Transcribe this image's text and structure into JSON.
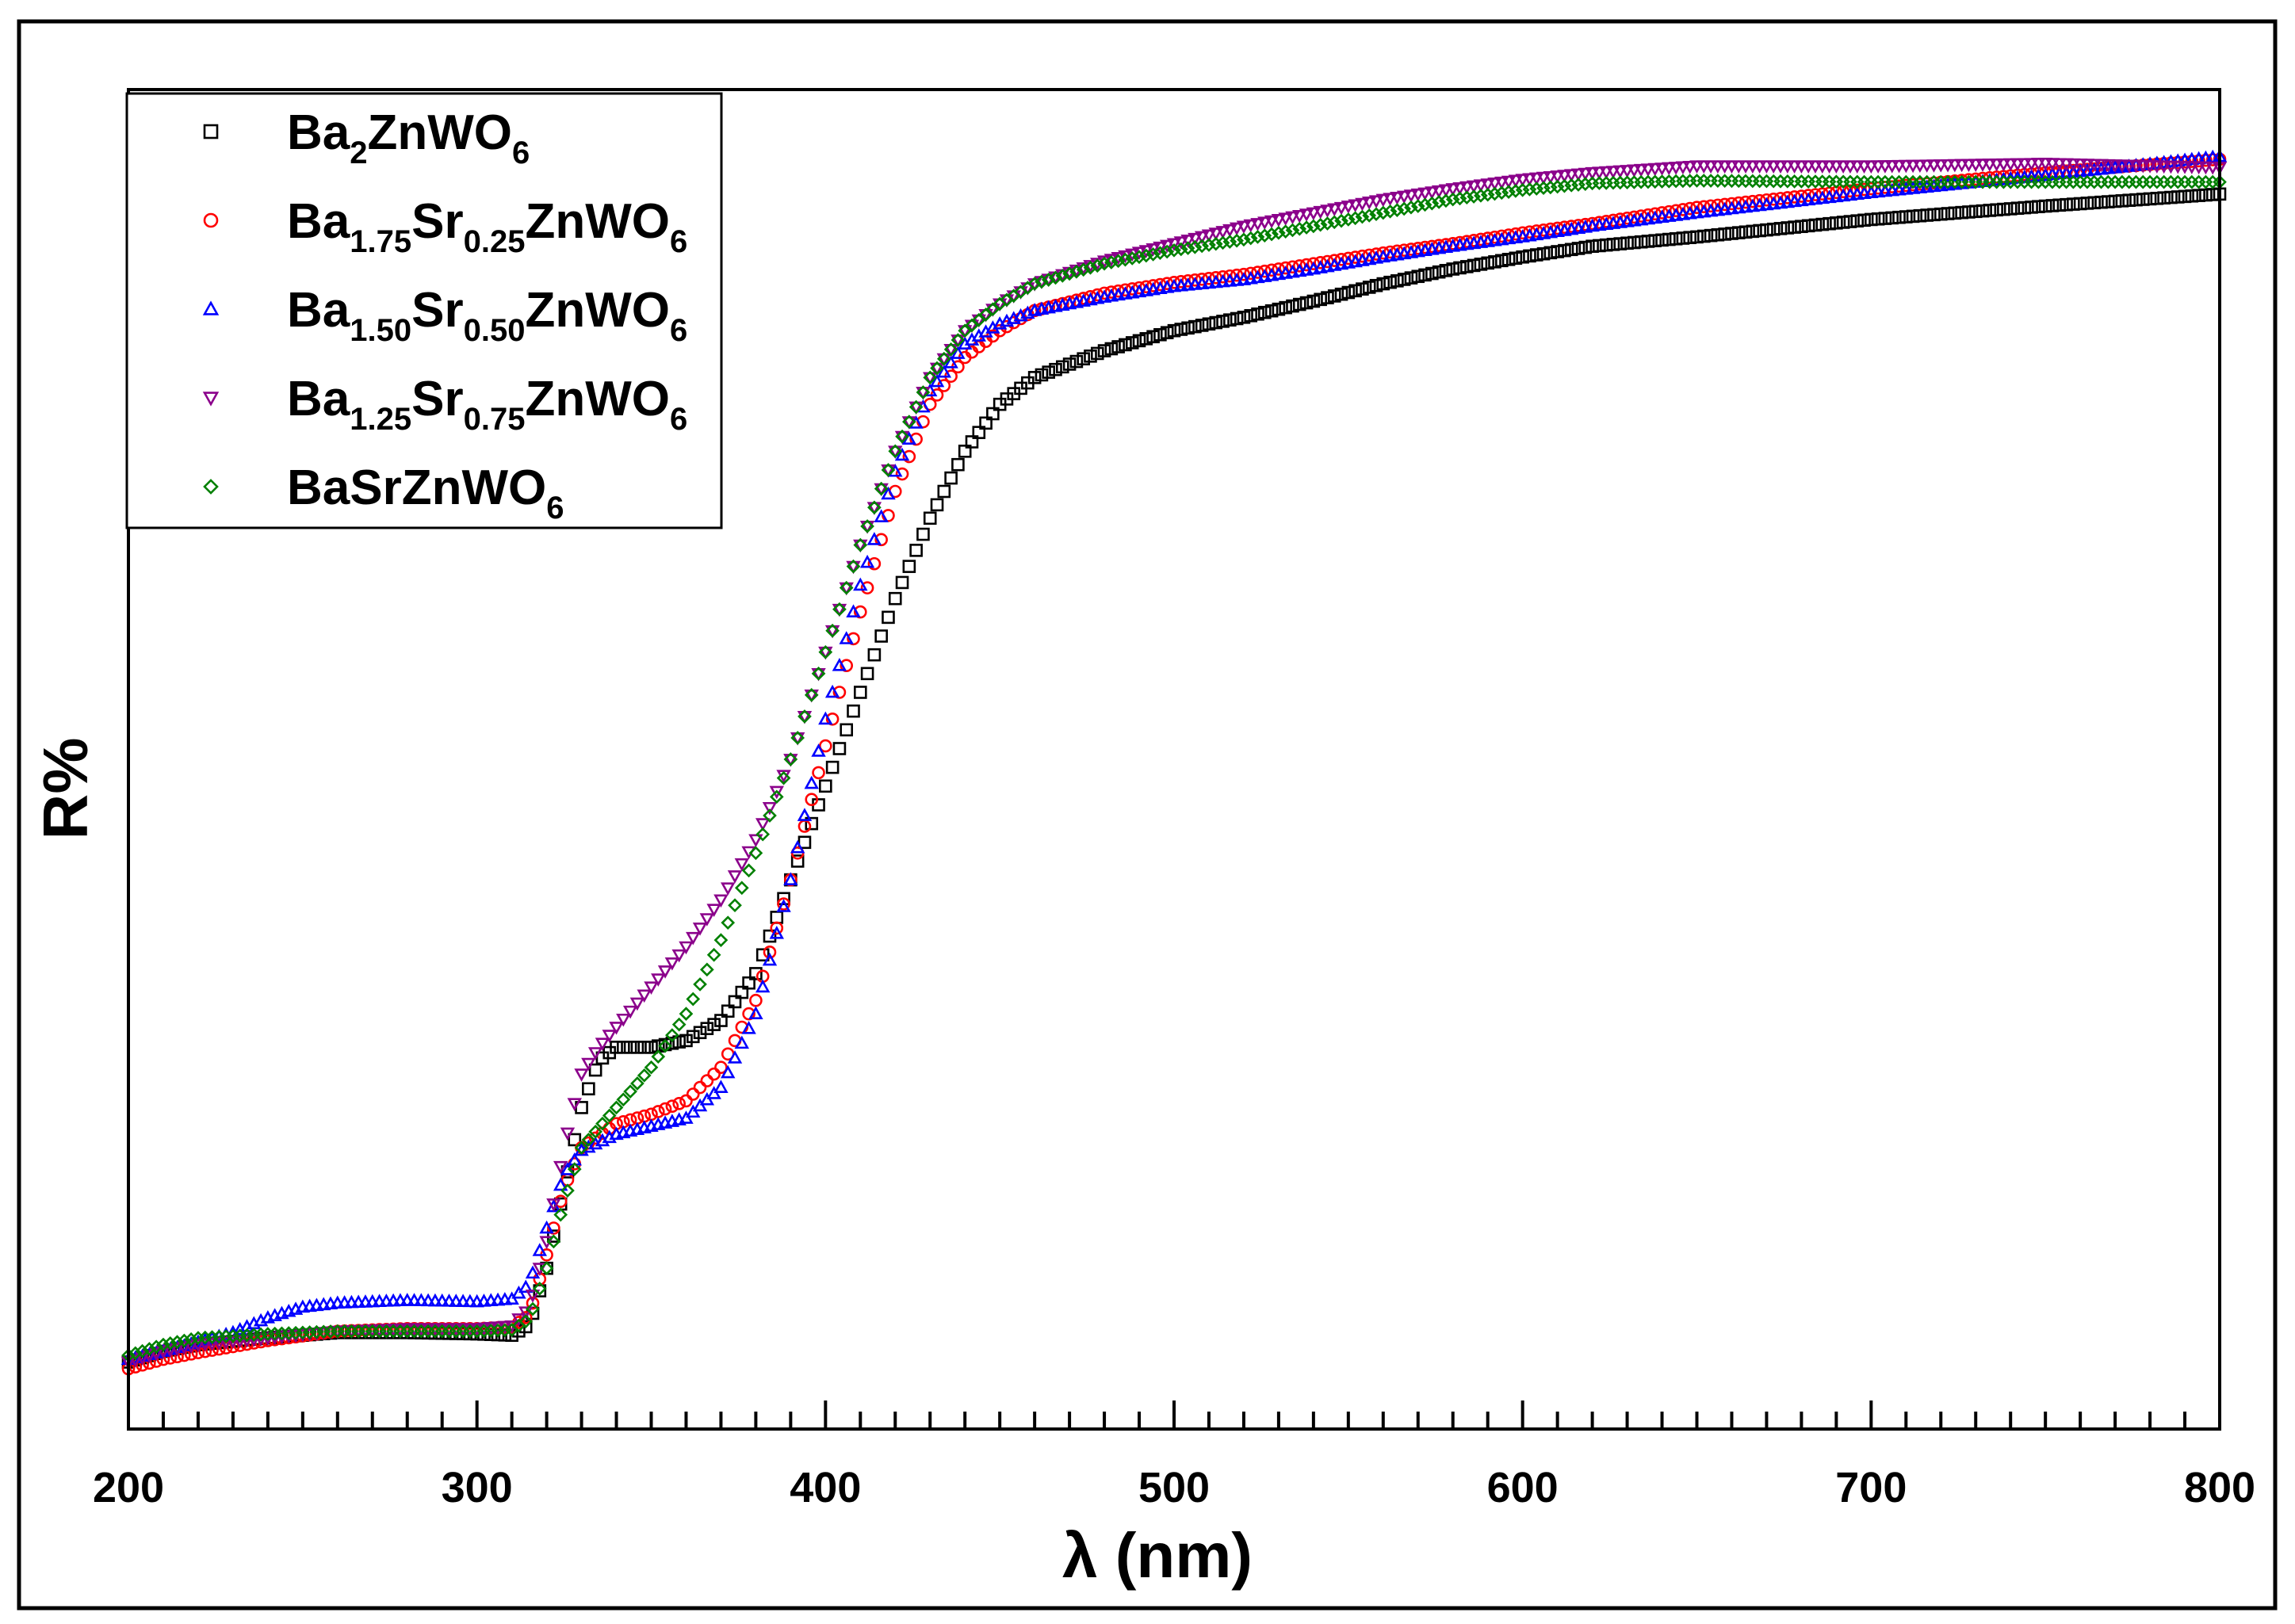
{
  "chart_data": {
    "type": "scatter",
    "title": "",
    "xlabel": "λ (nm)",
    "ylabel": "R%",
    "xlim": [
      200,
      800
    ],
    "ylim": [
      0,
      100
    ],
    "x_ticks": [
      200,
      300,
      400,
      500,
      600,
      700,
      800
    ],
    "y_ticks_labeled": false,
    "legend_position": "top-left",
    "series": [
      {
        "name": "Ba2ZnWO6",
        "legend": {
          "base": "Ba",
          "parts": [
            [
              "2",
              "sub"
            ],
            [
              "ZnWO",
              ""
            ],
            [
              "6",
              "sub"
            ]
          ]
        },
        "marker": "square",
        "color": "#000000",
        "points": [
          [
            200,
            5
          ],
          [
            210,
            5.8
          ],
          [
            220,
            6.3
          ],
          [
            240,
            6.8
          ],
          [
            260,
            7.2
          ],
          [
            280,
            7.2
          ],
          [
            300,
            7.1
          ],
          [
            310,
            7.0
          ],
          [
            315,
            7.8
          ],
          [
            320,
            12
          ],
          [
            325,
            18
          ],
          [
            330,
            24
          ],
          [
            335,
            27.5
          ],
          [
            340,
            28.5
          ],
          [
            350,
            28.5
          ],
          [
            360,
            29
          ],
          [
            370,
            30.5
          ],
          [
            380,
            34
          ],
          [
            390,
            41
          ],
          [
            400,
            48
          ],
          [
            410,
            55
          ],
          [
            420,
            62
          ],
          [
            430,
            68
          ],
          [
            440,
            73
          ],
          [
            450,
            76.5
          ],
          [
            460,
            78.5
          ],
          [
            480,
            80.5
          ],
          [
            500,
            82
          ],
          [
            520,
            83
          ],
          [
            540,
            84.2
          ],
          [
            560,
            85.5
          ],
          [
            580,
            86.6
          ],
          [
            600,
            87.5
          ],
          [
            620,
            88.3
          ],
          [
            650,
            89
          ],
          [
            700,
            90.3
          ],
          [
            750,
            91.3
          ],
          [
            800,
            92.2
          ]
        ]
      },
      {
        "name": "Ba1.75Sr0.25ZnWO6",
        "legend": {
          "base": "Ba",
          "parts": [
            [
              "1.75",
              "sub"
            ],
            [
              "Sr",
              ""
            ],
            [
              "0.25",
              "sub"
            ],
            [
              "ZnWO",
              ""
            ],
            [
              "6",
              "sub"
            ]
          ]
        },
        "marker": "circle",
        "color": "#ff0000",
        "points": [
          [
            200,
            4.5
          ],
          [
            210,
            5.2
          ],
          [
            220,
            5.7
          ],
          [
            240,
            6.6
          ],
          [
            260,
            7.3
          ],
          [
            280,
            7.5
          ],
          [
            300,
            7.5
          ],
          [
            310,
            7.6
          ],
          [
            315,
            8.5
          ],
          [
            320,
            13
          ],
          [
            325,
            18
          ],
          [
            330,
            21
          ],
          [
            340,
            22.8
          ],
          [
            350,
            23.5
          ],
          [
            360,
            24.5
          ],
          [
            370,
            27
          ],
          [
            380,
            32
          ],
          [
            390,
            41
          ],
          [
            400,
            51
          ],
          [
            410,
            61
          ],
          [
            420,
            70
          ],
          [
            430,
            76.5
          ],
          [
            440,
            80
          ],
          [
            450,
            82
          ],
          [
            460,
            83.5
          ],
          [
            480,
            84.8
          ],
          [
            500,
            85.6
          ],
          [
            520,
            86.2
          ],
          [
            540,
            87
          ],
          [
            560,
            87.8
          ],
          [
            580,
            88.5
          ],
          [
            600,
            89.3
          ],
          [
            620,
            90
          ],
          [
            650,
            91.2
          ],
          [
            700,
            92.6
          ],
          [
            750,
            93.8
          ],
          [
            800,
            94.8
          ]
        ]
      },
      {
        "name": "Ba1.50Sr0.50ZnWO6",
        "legend": {
          "base": "Ba",
          "parts": [
            [
              "1.50",
              "sub"
            ],
            [
              "Sr",
              ""
            ],
            [
              "0.50",
              "sub"
            ],
            [
              "ZnWO",
              ""
            ],
            [
              "6",
              "sub"
            ]
          ]
        },
        "marker": "triangle-up",
        "color": "#0000ff",
        "points": [
          [
            200,
            5.2
          ],
          [
            210,
            5.8
          ],
          [
            220,
            6.5
          ],
          [
            230,
            7.2
          ],
          [
            240,
            8.3
          ],
          [
            250,
            9.1
          ],
          [
            260,
            9.4
          ],
          [
            280,
            9.6
          ],
          [
            300,
            9.5
          ],
          [
            310,
            9.7
          ],
          [
            315,
            10.8
          ],
          [
            320,
            15
          ],
          [
            325,
            19
          ],
          [
            330,
            20.8
          ],
          [
            340,
            22
          ],
          [
            350,
            22.6
          ],
          [
            360,
            23.2
          ],
          [
            370,
            25.5
          ],
          [
            380,
            31
          ],
          [
            390,
            41
          ],
          [
            400,
            53
          ],
          [
            410,
            63
          ],
          [
            420,
            71.5
          ],
          [
            430,
            77.5
          ],
          [
            440,
            81
          ],
          [
            450,
            82.5
          ],
          [
            460,
            83.5
          ],
          [
            480,
            84.5
          ],
          [
            500,
            85.3
          ],
          [
            520,
            85.8
          ],
          [
            540,
            86.6
          ],
          [
            560,
            87.5
          ],
          [
            580,
            88.3
          ],
          [
            600,
            89
          ],
          [
            620,
            89.8
          ],
          [
            650,
            90.8
          ],
          [
            700,
            92.3
          ],
          [
            750,
            93.6
          ],
          [
            800,
            95
          ]
        ]
      },
      {
        "name": "Ba1.25Sr0.75ZnWO6",
        "legend": {
          "base": "Ba",
          "parts": [
            [
              "1.25",
              "sub"
            ],
            [
              "Sr",
              ""
            ],
            [
              "0.75",
              "sub"
            ],
            [
              "ZnWO",
              ""
            ],
            [
              "6",
              "sub"
            ]
          ]
        },
        "marker": "triangle-down",
        "color": "#8b008b",
        "points": [
          [
            200,
            5
          ],
          [
            210,
            5.8
          ],
          [
            220,
            6.3
          ],
          [
            240,
            6.8
          ],
          [
            260,
            7.3
          ],
          [
            280,
            7.5
          ],
          [
            300,
            7.5
          ],
          [
            310,
            7.7
          ],
          [
            315,
            9
          ],
          [
            320,
            14
          ],
          [
            325,
            21
          ],
          [
            330,
            26.5
          ],
          [
            335,
            28.5
          ],
          [
            340,
            30
          ],
          [
            350,
            33
          ],
          [
            360,
            36
          ],
          [
            370,
            39.5
          ],
          [
            380,
            44
          ],
          [
            390,
            50
          ],
          [
            400,
            58
          ],
          [
            410,
            66
          ],
          [
            420,
            73
          ],
          [
            430,
            78.5
          ],
          [
            440,
            82
          ],
          [
            450,
            84
          ],
          [
            460,
            85.5
          ],
          [
            480,
            87.2
          ],
          [
            500,
            88.5
          ],
          [
            520,
            89.8
          ],
          [
            540,
            90.8
          ],
          [
            560,
            91.8
          ],
          [
            580,
            92.6
          ],
          [
            600,
            93.3
          ],
          [
            620,
            93.8
          ],
          [
            650,
            94.3
          ],
          [
            700,
            94.3
          ],
          [
            750,
            94.5
          ],
          [
            800,
            94.2
          ]
        ]
      },
      {
        "name": "BaSrZnWO6",
        "legend": {
          "base": "BaSrZnWO",
          "parts": [
            [
              "6",
              "sub"
            ]
          ]
        },
        "marker": "diamond",
        "color": "#008000",
        "points": [
          [
            200,
            5.5
          ],
          [
            210,
            6.3
          ],
          [
            220,
            6.8
          ],
          [
            240,
            7.1
          ],
          [
            260,
            7.3
          ],
          [
            280,
            7.3
          ],
          [
            300,
            7.3
          ],
          [
            310,
            7.4
          ],
          [
            315,
            8.2
          ],
          [
            320,
            12
          ],
          [
            325,
            17
          ],
          [
            330,
            21
          ],
          [
            340,
            24
          ],
          [
            350,
            27
          ],
          [
            360,
            31
          ],
          [
            370,
            36.5
          ],
          [
            380,
            43
          ],
          [
            390,
            50
          ],
          [
            400,
            58
          ],
          [
            410,
            66
          ],
          [
            420,
            73
          ],
          [
            430,
            78.5
          ],
          [
            440,
            82
          ],
          [
            450,
            84
          ],
          [
            460,
            85.5
          ],
          [
            480,
            87
          ],
          [
            500,
            88
          ],
          [
            520,
            88.8
          ],
          [
            540,
            89.8
          ],
          [
            560,
            90.8
          ],
          [
            580,
            91.8
          ],
          [
            600,
            92.5
          ],
          [
            620,
            93
          ],
          [
            650,
            93.2
          ],
          [
            700,
            93.1
          ],
          [
            750,
            93.1
          ],
          [
            800,
            93.1
          ]
        ]
      }
    ]
  }
}
